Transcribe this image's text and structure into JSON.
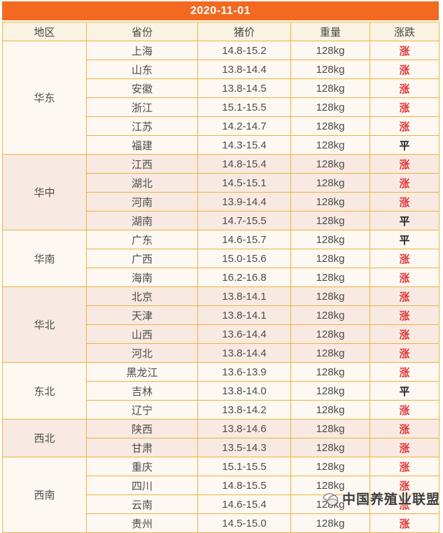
{
  "page": {
    "date_title": "2020-11-01"
  },
  "chart_data": {
    "type": "table",
    "title": "2020-11-01",
    "columns": [
      "地区",
      "省份",
      "猪价",
      "重量",
      "涨跌"
    ],
    "groups": [
      {
        "region": "华东",
        "rows": [
          {
            "province": "上海",
            "price": "14.8-15.2",
            "weight": "128kg",
            "trend": "涨"
          },
          {
            "province": "山东",
            "price": "13.8-14.4",
            "weight": "128kg",
            "trend": "涨"
          },
          {
            "province": "安徽",
            "price": "13.8-14.5",
            "weight": "128kg",
            "trend": "涨"
          },
          {
            "province": "浙江",
            "price": "15.1-15.5",
            "weight": "128kg",
            "trend": "涨"
          },
          {
            "province": "江苏",
            "price": "14.2-14.7",
            "weight": "128kg",
            "trend": "涨"
          },
          {
            "province": "福建",
            "price": "14.3-15.4",
            "weight": "128kg",
            "trend": "平"
          }
        ]
      },
      {
        "region": "华中",
        "rows": [
          {
            "province": "江西",
            "price": "14.8-15.4",
            "weight": "128kg",
            "trend": "涨"
          },
          {
            "province": "湖北",
            "price": "14.5-15.1",
            "weight": "128kg",
            "trend": "涨"
          },
          {
            "province": "河南",
            "price": "13.9-14.4",
            "weight": "128kg",
            "trend": "涨"
          },
          {
            "province": "湖南",
            "price": "14.7-15.5",
            "weight": "128kg",
            "trend": "平"
          }
        ]
      },
      {
        "region": "华南",
        "rows": [
          {
            "province": "广东",
            "price": "14.6-15.7",
            "weight": "128kg",
            "trend": "平"
          },
          {
            "province": "广西",
            "price": "15.0-15.6",
            "weight": "128kg",
            "trend": "涨"
          },
          {
            "province": "海南",
            "price": "16.2-16.8",
            "weight": "128kg",
            "trend": "涨"
          }
        ]
      },
      {
        "region": "华北",
        "rows": [
          {
            "province": "北京",
            "price": "13.8-14.1",
            "weight": "128kg",
            "trend": "涨"
          },
          {
            "province": "天津",
            "price": "13.8-14.1",
            "weight": "128kg",
            "trend": "涨"
          },
          {
            "province": "山西",
            "price": "13.6-14.4",
            "weight": "128kg",
            "trend": "涨"
          },
          {
            "province": "河北",
            "price": "13.8-14.4",
            "weight": "128kg",
            "trend": "涨"
          }
        ]
      },
      {
        "region": "东北",
        "rows": [
          {
            "province": "黑龙江",
            "price": "13.6-13.9",
            "weight": "128kg",
            "trend": "涨"
          },
          {
            "province": "吉林",
            "price": "13.8-14.0",
            "weight": "128kg",
            "trend": "平"
          },
          {
            "province": "辽宁",
            "price": "13.8-14.2",
            "weight": "128kg",
            "trend": "涨"
          }
        ]
      },
      {
        "region": "西北",
        "rows": [
          {
            "province": "陕西",
            "price": "13.8-14.6",
            "weight": "128kg",
            "trend": "涨"
          },
          {
            "province": "甘肃",
            "price": "13.5-14.3",
            "weight": "128kg",
            "trend": "涨"
          }
        ]
      },
      {
        "region": "西南",
        "rows": [
          {
            "province": "重庆",
            "price": "15.1-15.5",
            "weight": "128kg",
            "trend": "涨"
          },
          {
            "province": "四川",
            "price": "14.8-15.5",
            "weight": "128kg",
            "trend": "涨"
          },
          {
            "province": "云南",
            "price": "14.6-15.4",
            "weight": "128kg",
            "trend": "涨"
          },
          {
            "province": "贵州",
            "price": "14.5-15.0",
            "weight": "128kg",
            "trend": "涨"
          }
        ]
      }
    ],
    "trend_up_label": "涨",
    "trend_flat_label": "平"
  },
  "watermark": {
    "text": "中国养殖业联盟",
    "icon": "dove-globe-icon"
  },
  "colors": {
    "title_bar_orange": "#f2691f",
    "border_gold": "#efb13c",
    "header_row_cream": "#fbf3e2",
    "block_cream": "#fdf8f2",
    "block_pink": "#f8eae2",
    "trend_up_red": "#e03a3a",
    "trend_flat_black": "#1f1f1f"
  }
}
